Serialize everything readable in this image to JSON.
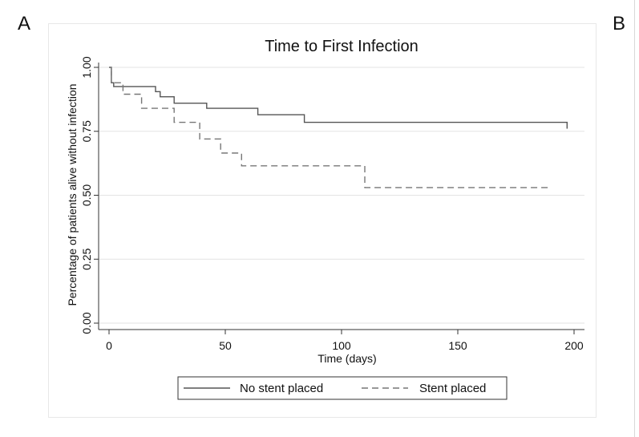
{
  "panels": {
    "a": "A",
    "b": "B"
  },
  "chart_data": {
    "type": "line",
    "title": "Time to First Infection",
    "xlabel": "Time (days)",
    "ylabel": "Percentage of patients alive without infection",
    "xlim": [
      0,
      200
    ],
    "ylim": [
      0,
      1
    ],
    "x_ticks": [
      "0",
      "50",
      "100",
      "150",
      "200"
    ],
    "y_ticks": [
      "0.00",
      "0.25",
      "0.50",
      "0.75",
      "1.00"
    ],
    "grid": true,
    "legend_position": "bottom",
    "series": [
      {
        "name": "No stent placed",
        "style": "solid",
        "color": "#555555",
        "x": [
          0,
          1,
          2,
          20,
          22,
          28,
          42,
          64,
          84,
          197,
          197
        ],
        "y": [
          1.0,
          0.94,
          0.925,
          0.905,
          0.885,
          0.86,
          0.84,
          0.815,
          0.785,
          0.785,
          0.76
        ]
      },
      {
        "name": "Stent placed",
        "style": "dashed",
        "color": "#777777",
        "x": [
          0,
          1,
          6,
          14,
          28,
          39,
          48,
          57,
          110,
          190
        ],
        "y": [
          1.0,
          0.94,
          0.895,
          0.84,
          0.785,
          0.72,
          0.665,
          0.615,
          0.53,
          0.53
        ]
      }
    ]
  }
}
